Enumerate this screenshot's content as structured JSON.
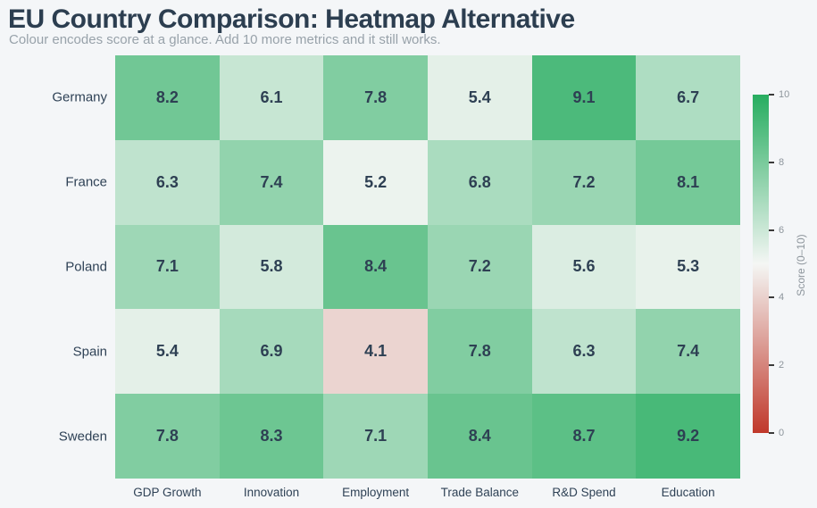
{
  "header": {
    "title": "EU Country Comparison: Heatmap Alternative",
    "subtitle": "Colour encodes score at a glance. Add 10 more metrics and it still works."
  },
  "chart_data": {
    "type": "heatmap",
    "title": "EU Country Comparison: Heatmap Alternative",
    "rows": [
      "Germany",
      "France",
      "Poland",
      "Spain",
      "Sweden"
    ],
    "columns": [
      "GDP Growth",
      "Innovation",
      "Employment",
      "Trade Balance",
      "R&D Spend",
      "Education"
    ],
    "values": [
      [
        8.2,
        6.1,
        7.8,
        5.4,
        9.1,
        6.7
      ],
      [
        6.3,
        7.4,
        5.2,
        6.8,
        7.2,
        8.1
      ],
      [
        7.1,
        5.8,
        8.4,
        7.2,
        5.6,
        5.3
      ],
      [
        5.4,
        6.9,
        4.1,
        7.8,
        6.3,
        7.4
      ],
      [
        7.8,
        8.3,
        7.1,
        8.4,
        8.7,
        9.2
      ]
    ],
    "value_format": "one-decimal",
    "colorbar": {
      "label": "Score (0–10)",
      "ticks": [
        0,
        2,
        4,
        6,
        8,
        10
      ],
      "min": 0,
      "max": 10
    },
    "colors": {
      "low": "#c0392b",
      "mid": "#f4f6f4",
      "high": "#27ad60",
      "midpoint": 5,
      "background": "#f4f6f8",
      "title_text": "#2c3e50",
      "subtitle_text": "#98a2aa",
      "axis_text": "#2f4256",
      "cell_text": "#2e4053",
      "tick_text": "#8d959c"
    },
    "layout": {
      "legend_position": "right",
      "grid": false
    }
  }
}
